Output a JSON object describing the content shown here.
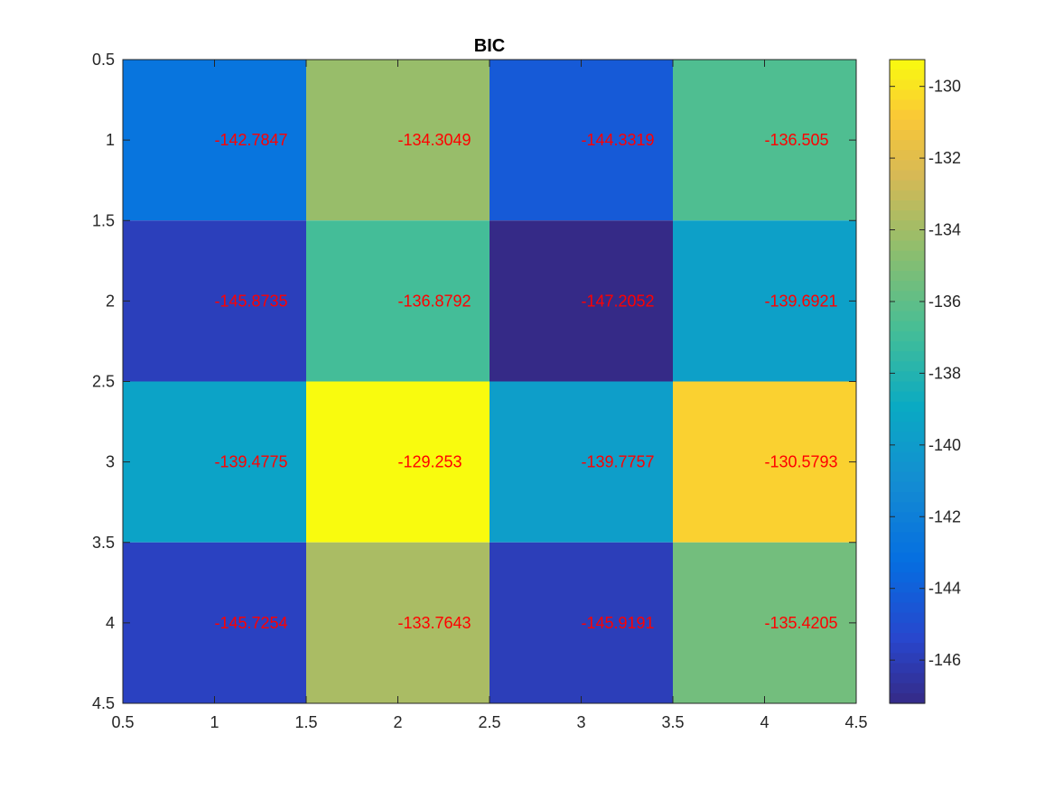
{
  "chart_data": {
    "type": "heatmap",
    "title": "BIC",
    "xlabel": "",
    "ylabel": "",
    "x": [
      1,
      2,
      3,
      4
    ],
    "y": [
      1,
      2,
      3,
      4
    ],
    "xlim": [
      0.5,
      4.5
    ],
    "ylim": [
      0.5,
      4.5
    ],
    "y_direction": "reverse",
    "xticks": [
      "0.5",
      "1",
      "1.5",
      "2",
      "2.5",
      "3",
      "3.5",
      "4",
      "4.5"
    ],
    "yticks": [
      "0.5",
      "1",
      "1.5",
      "2",
      "2.5",
      "3",
      "3.5",
      "4",
      "4.5"
    ],
    "values": [
      [
        -142.7847,
        -134.3049,
        -144.3319,
        -136.505
      ],
      [
        -145.8735,
        -136.8792,
        -147.2052,
        -139.6921
      ],
      [
        -139.4775,
        -129.253,
        -139.7757,
        -130.5793
      ],
      [
        -145.7254,
        -133.7643,
        -145.9191,
        -135.4205
      ]
    ],
    "value_labels": [
      [
        "-142.7847",
        "-134.3049",
        "-144.3319",
        "-136.505"
      ],
      [
        "-145.8735",
        "-136.8792",
        "-147.2052",
        "-139.6921"
      ],
      [
        "-139.4775",
        "-129.253",
        "-139.7757",
        "-130.5793"
      ],
      [
        "-145.7254",
        "-133.7643",
        "-145.9191",
        "-135.4205"
      ]
    ],
    "label_color": "#ff0000",
    "colormap": "parula",
    "colorbar": {
      "placement": "right",
      "range": [
        -147.2052,
        -129.253
      ],
      "ticks": [
        -146,
        -144,
        -142,
        -140,
        -138,
        -136,
        -134,
        -132,
        -130
      ],
      "tick_labels": [
        "-146",
        "-144",
        "-142",
        "-140",
        "-138",
        "-136",
        "-134",
        "-132",
        "-130"
      ]
    },
    "grid": false
  }
}
